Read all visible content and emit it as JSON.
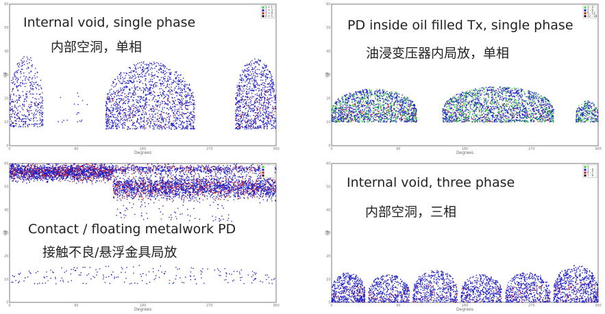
{
  "chart_data": [
    {
      "type": "scatter",
      "caption_en": "Internal void, single phase",
      "caption_zh": "内部空洞，单相",
      "xlabel": "Degrees",
      "ylabel": "dB",
      "xlim": [
        0,
        360
      ],
      "ylim": [
        0,
        60
      ],
      "x_ticks": [
        "0",
        "90",
        "180",
        "270",
        "360"
      ],
      "y_ticks": [
        "0",
        "10",
        "20",
        "30",
        "40",
        "50",
        "60"
      ],
      "legend": [
        "1 < 1",
        "1 < 3",
        "3 < 4",
        "4 < 5"
      ],
      "legend_colors": [
        "#33cc33",
        "#1a1acc",
        "#cc1a1a",
        "#330000"
      ],
      "clusters": [
        {
          "x": [
            0,
            45
          ],
          "y": [
            8,
            38
          ],
          "density": 420,
          "mix": [
            0,
            0.95,
            0.05
          ]
        },
        {
          "x": [
            65,
            110
          ],
          "y": [
            10,
            26
          ],
          "density": 18,
          "mix": [
            0,
            1,
            0
          ]
        },
        {
          "x": [
            130,
            250
          ],
          "y": [
            7,
            36
          ],
          "density": 1500,
          "mix": [
            0,
            0.92,
            0.08
          ]
        },
        {
          "x": [
            305,
            360
          ],
          "y": [
            7,
            37
          ],
          "density": 900,
          "mix": [
            0,
            0.9,
            0.1
          ]
        }
      ]
    },
    {
      "type": "scatter",
      "caption_en": "PD inside oil filled Tx, single phase",
      "caption_zh": "油浸变压器内局放，单相",
      "xlabel": "Degrees",
      "ylabel": "dB",
      "xlim": [
        0,
        360
      ],
      "ylim": [
        0,
        60
      ],
      "x_ticks": [
        "0",
        "90",
        "180",
        "270",
        "360"
      ],
      "y_ticks": [
        "0",
        "10",
        "20",
        "30",
        "40",
        "50",
        "60"
      ],
      "legend": [
        "1 - 3",
        "3 - 9",
        "9 - 12",
        "12 - 18"
      ],
      "legend_colors": [
        "#33dd33",
        "#1a1acc",
        "#cc1a1a",
        "#330000"
      ],
      "clusters": [
        {
          "x": [
            0,
            115
          ],
          "y": [
            10,
            24
          ],
          "density": 1600,
          "mix": [
            0.3,
            0.62,
            0.08
          ]
        },
        {
          "x": [
            150,
            300
          ],
          "y": [
            10,
            25
          ],
          "density": 2000,
          "mix": [
            0.3,
            0.62,
            0.08
          ]
        },
        {
          "x": [
            330,
            360
          ],
          "y": [
            10,
            19
          ],
          "density": 300,
          "mix": [
            0.35,
            0.6,
            0.05
          ]
        }
      ]
    },
    {
      "type": "scatter",
      "caption_en": "Contact / floating metalwork PD",
      "caption_zh": "接触不良/悬浮金具局放",
      "xlabel": "Degrees",
      "ylabel": "dB",
      "xlim": [
        0,
        360
      ],
      "ylim": [
        0,
        60
      ],
      "x_ticks": [
        "0",
        "90",
        "180",
        "270",
        "360"
      ],
      "y_ticks": [
        "0",
        "10",
        "20",
        "30",
        "40",
        "50",
        "60"
      ],
      "legend": [
        "",
        "",
        "",
        ""
      ],
      "legend_colors": [
        "#33cc33",
        "#1a1acc",
        "#cc1a1a",
        "#330000"
      ],
      "clusters": [
        {
          "x": [
            0,
            140
          ],
          "y": [
            53.5,
            59
          ],
          "density": 2200,
          "mix": [
            0,
            0.75,
            0.25
          ]
        },
        {
          "x": [
            140,
            360
          ],
          "y": [
            46,
            53.5
          ],
          "density": 2600,
          "mix": [
            0,
            0.78,
            0.22
          ]
        },
        {
          "x": [
            140,
            360
          ],
          "y": [
            56,
            59
          ],
          "density": 800,
          "mix": [
            0,
            0.8,
            0.2
          ]
        },
        {
          "x": [
            140,
            300
          ],
          "y": [
            35,
            46
          ],
          "density": 90,
          "mix": [
            0,
            0.9,
            0.1
          ]
        },
        {
          "x": [
            0,
            360
          ],
          "y": [
            8,
            16
          ],
          "density": 200,
          "mix": [
            0,
            0.95,
            0.05
          ]
        }
      ]
    },
    {
      "type": "scatter",
      "caption_en": "Internal void, three phase",
      "caption_zh": "内部空洞，三相",
      "xlabel": "Degrees",
      "ylabel": "dB",
      "xlim": [
        0,
        360
      ],
      "ylim": [
        0,
        60
      ],
      "x_ticks": [
        "0",
        "90",
        "180",
        "270",
        "360"
      ],
      "y_ticks": [
        "0",
        "10",
        "20",
        "30",
        "40",
        "50",
        "60"
      ],
      "legend": [
        "1",
        "1 - 4",
        "4 - 7",
        "7 - 9"
      ],
      "legend_colors": [
        "#33cc33",
        "#1a1acc",
        "#cc1a1a",
        "#330000"
      ],
      "clusters": [
        {
          "x": [
            0,
            45
          ],
          "y": [
            0,
            13
          ],
          "density": 550,
          "mix": [
            0,
            0.9,
            0.1
          ]
        },
        {
          "x": [
            50,
            105
          ],
          "y": [
            0,
            12
          ],
          "density": 500,
          "mix": [
            0,
            0.9,
            0.1
          ]
        },
        {
          "x": [
            110,
            170
          ],
          "y": [
            0,
            14
          ],
          "density": 550,
          "mix": [
            0,
            0.9,
            0.1
          ]
        },
        {
          "x": [
            175,
            230
          ],
          "y": [
            0,
            12
          ],
          "density": 500,
          "mix": [
            0,
            0.9,
            0.1
          ]
        },
        {
          "x": [
            235,
            295
          ],
          "y": [
            0,
            13
          ],
          "density": 550,
          "mix": [
            0,
            0.9,
            0.1
          ]
        },
        {
          "x": [
            300,
            360
          ],
          "y": [
            0,
            16
          ],
          "density": 700,
          "mix": [
            0,
            0.88,
            0.12
          ]
        }
      ]
    }
  ]
}
